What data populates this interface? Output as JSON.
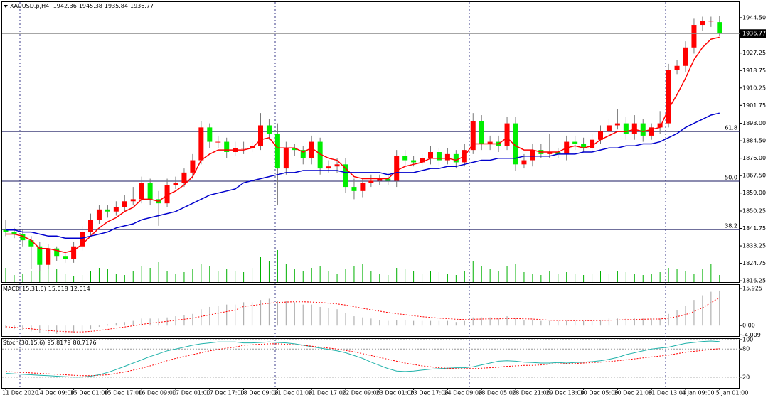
{
  "chart_data": [
    {
      "type": "candlestick",
      "title": "XAUUSD.p,H4",
      "categories": [
        "11 Dec 2020",
        null,
        null,
        null,
        "14 Dec 09:00",
        null,
        null,
        null,
        "15 Dec 01:00",
        null,
        null,
        null,
        "15 Dec 17:00",
        null,
        null,
        null,
        "16 Dec 09:00",
        null,
        null,
        null,
        "17 Dec 01:00",
        null,
        null,
        null,
        "17 Dec 17:00",
        null,
        null,
        null,
        "18 Dec 09:00",
        null,
        null,
        null,
        "21 Dec 01:00",
        null,
        null,
        null,
        "21 Dec 17:00",
        null,
        null,
        null,
        "22 Dec 09:00",
        null,
        null,
        null,
        "23 Dec 01:00",
        null,
        null,
        null,
        "23 Dec 17:00",
        null,
        null,
        null,
        "24 Dec 09:00",
        null,
        null,
        null,
        "28 Dec 05:00",
        null,
        null,
        null,
        "28 Dec 21:00",
        null,
        null,
        null,
        "29 Dec 13:00",
        null,
        null,
        null,
        "30 Dec 05:00",
        null,
        null,
        null,
        "30 Dec 21:00",
        null,
        null,
        null,
        "31 Dec 13:00",
        null,
        null,
        null,
        "4 Jan 09:00",
        null,
        null,
        null,
        "5 Jan 01:00"
      ],
      "open": [
        1841,
        1840,
        1839,
        1836,
        1833,
        1824,
        1832,
        1828,
        1827,
        1833,
        1840,
        1846,
        1851,
        1850,
        1852,
        1855,
        1856,
        1864,
        1856,
        1854,
        1863,
        1864,
        1869,
        1875,
        1891,
        1884,
        1884,
        1879,
        1881,
        1881,
        1882,
        1892,
        1888,
        1871,
        1881,
        1880,
        1876,
        1884,
        1871,
        1872,
        1873,
        1862,
        1860,
        1864,
        1865,
        1866,
        1865,
        1877,
        1875,
        1874,
        1876,
        1879,
        1875,
        1878,
        1874,
        1880,
        1894,
        1883,
        1884,
        1882,
        1893,
        1873,
        1875,
        1880,
        1878,
        1879,
        1878,
        1884,
        1883,
        1881,
        1885,
        1889,
        1892,
        1893,
        1888,
        1893,
        1887,
        1891,
        1893,
        1919,
        1921,
        1930,
        1941,
        1943,
        1942.36
      ],
      "high": [
        1846,
        1842,
        1841,
        1838,
        1835,
        1834,
        1833,
        1830,
        1835,
        1843,
        1849,
        1853,
        1853,
        1855,
        1858,
        1862,
        1867,
        1866,
        1860,
        1866,
        1867,
        1871,
        1878,
        1894,
        1893,
        1887,
        1886,
        1884,
        1884,
        1884,
        1898,
        1895,
        1893,
        1884,
        1883,
        1882,
        1887,
        1886,
        1875,
        1876,
        1876,
        1866,
        1866,
        1868,
        1868,
        1869,
        1880,
        1880,
        1877,
        1878,
        1882,
        1881,
        1881,
        1880,
        1883,
        1898,
        1897,
        1887,
        1887,
        1896,
        1896,
        1878,
        1883,
        1883,
        1888,
        1881,
        1887,
        1887,
        1886,
        1888,
        1892,
        1895,
        1900,
        1896,
        1897,
        1895,
        1893,
        1899,
        1922,
        1924,
        1933,
        1944,
        1945,
        1945,
        1945.38
      ],
      "low": [
        1838,
        1837,
        1833,
        1822,
        1821,
        1822,
        1826,
        1825,
        1825,
        1831,
        1838,
        1844,
        1847,
        1848,
        1850,
        1853,
        1854,
        1853,
        1843,
        1852,
        1861,
        1862,
        1866,
        1873,
        1881,
        1881,
        1876,
        1877,
        1878,
        1879,
        1880,
        1885,
        1853,
        1868,
        1877,
        1873,
        1873,
        1868,
        1869,
        1869,
        1859,
        1856,
        1857,
        1862,
        1863,
        1863,
        1862,
        1872,
        1872,
        1871,
        1873,
        1872,
        1873,
        1871,
        1872,
        1878,
        1880,
        1880,
        1879,
        1880,
        1870,
        1871,
        1872,
        1876,
        1876,
        1876,
        1875,
        1880,
        1879,
        1879,
        1883,
        1887,
        1890,
        1885,
        1885,
        1884,
        1885,
        1888,
        1891,
        1917,
        1918,
        1927,
        1938,
        1940,
        1935.84
      ],
      "close": [
        1840,
        1839,
        1836,
        1833,
        1824,
        1832,
        1828,
        1827,
        1833,
        1840,
        1846,
        1851,
        1850,
        1852,
        1855,
        1856,
        1864,
        1856,
        1854,
        1863,
        1864,
        1869,
        1875,
        1891,
        1884,
        1884,
        1879,
        1881,
        1881,
        1882,
        1892,
        1888,
        1871,
        1881,
        1880,
        1876,
        1884,
        1871,
        1872,
        1873,
        1862,
        1860,
        1864,
        1865,
        1866,
        1865,
        1877,
        1875,
        1874,
        1876,
        1879,
        1875,
        1878,
        1874,
        1880,
        1894,
        1883,
        1884,
        1882,
        1893,
        1873,
        1875,
        1880,
        1878,
        1879,
        1878,
        1884,
        1883,
        1881,
        1885,
        1889,
        1892,
        1893,
        1888,
        1893,
        1887,
        1891,
        1893,
        1919,
        1921,
        1930,
        1941,
        1943,
        1943,
        1936.77
      ],
      "up_color": "#ff0000",
      "down_color": "#00ee00",
      "overlays": [
        {
          "color": "#ff0000",
          "values": [
            1839,
            1839,
            1838,
            1836,
            1832,
            1832,
            1831,
            1830,
            1831,
            1834,
            1838,
            1842,
            1845,
            1847,
            1850,
            1852,
            1856,
            1856,
            1855,
            1858,
            1860,
            1863,
            1867,
            1875,
            1878,
            1880,
            1880,
            1880,
            1880,
            1881,
            1885,
            1886,
            1881,
            1881,
            1881,
            1879,
            1881,
            1878,
            1876,
            1875,
            1871,
            1867,
            1866,
            1866,
            1866,
            1866,
            1870,
            1872,
            1873,
            1874,
            1876,
            1876,
            1876,
            1875,
            1877,
            1883,
            1883,
            1883,
            1883,
            1886,
            1882,
            1880,
            1880,
            1879,
            1879,
            1879,
            1881,
            1882,
            1881,
            1882,
            1885,
            1887,
            1889,
            1889,
            1890,
            1889,
            1890,
            1891,
            1900,
            1907,
            1915,
            1924,
            1930,
            1934,
            1935
          ]
        },
        {
          "color": "#0000cc",
          "values": [
            1841,
            1841,
            1840,
            1840,
            1839,
            1838,
            1838,
            1837,
            1837,
            1837,
            1838,
            1839,
            1840,
            1842,
            1843,
            1844,
            1846,
            1847,
            1848,
            1849,
            1850,
            1852,
            1854,
            1856,
            1858,
            1859,
            1860,
            1861,
            1864,
            1865,
            1866,
            1867,
            1868,
            1869,
            1869,
            1870,
            1870,
            1870,
            1870,
            1870,
            1869,
            1869,
            1869,
            1869,
            1869,
            1868,
            1869,
            1869,
            1869,
            1870,
            1871,
            1871,
            1872,
            1872,
            1873,
            1874,
            1875,
            1875,
            1876,
            1876,
            1876,
            1877,
            1877,
            1877,
            1877,
            1878,
            1878,
            1878,
            1879,
            1879,
            1880,
            1881,
            1881,
            1882,
            1882,
            1883,
            1883,
            1884,
            1886,
            1888,
            1891,
            1893,
            1895,
            1897,
            1898
          ]
        }
      ],
      "volume": {
        "color": "#00b000",
        "values": [
          20,
          10,
          12,
          15,
          30,
          25,
          18,
          12,
          8,
          10,
          15,
          20,
          18,
          12,
          10,
          15,
          22,
          20,
          28,
          15,
          12,
          14,
          18,
          25,
          22,
          15,
          18,
          16,
          14,
          20,
          35,
          30,
          45,
          25,
          18,
          15,
          20,
          22,
          16,
          12,
          18,
          22,
          25,
          15,
          12,
          10,
          20,
          18,
          15,
          12,
          16,
          14,
          12,
          10,
          15,
          30,
          22,
          18,
          15,
          22,
          25,
          14,
          12,
          10,
          15,
          12,
          14,
          12,
          10,
          12,
          15,
          12,
          16,
          14,
          12,
          10,
          12,
          14,
          20,
          18,
          15,
          12,
          18,
          25,
          10
        ]
      },
      "levels": [
        {
          "label": "61.8",
          "price": 1889.0
        },
        {
          "label": "50.0",
          "price": 1864.8
        },
        {
          "label": "38.2",
          "price": 1841.2
        }
      ],
      "ylim": [
        1815.6,
        1952.1
      ],
      "yticks": [
        {
          "value": 1944.5,
          "label": "1944.50"
        },
        1927.25,
        1918.75,
        1910.25,
        1901.75,
        {
          "value": 1893,
          "label": "1893.00"
        },
        {
          "value": 1884.5,
          "label": "1884.50"
        },
        {
          "value": 1876,
          "label": "1876.00"
        },
        {
          "value": 1867.5,
          "label": "1867.50"
        },
        {
          "value": 1859,
          "label": "1859.00"
        },
        1850.25,
        1841.75,
        1833.25,
        1824.75,
        1816.25
      ],
      "grid": false
    },
    {
      "type": "macd",
      "title": "MACD(15,31,6)",
      "series": [
        {
          "color": "#b0b0b0",
          "style": "histogram",
          "values": [
            -1,
            -1.5,
            -2,
            -2.5,
            -3,
            -3.5,
            -3.5,
            -3.5,
            -3,
            -2.5,
            -1.5,
            -0.5,
            0.5,
            1,
            1.5,
            2,
            3,
            3,
            3,
            3.5,
            4,
            4.5,
            5,
            7,
            8,
            8.5,
            9,
            9,
            10,
            10,
            11,
            11.5,
            10.5,
            10.5,
            10,
            9,
            9,
            8,
            7.5,
            7,
            5.5,
            4,
            3.5,
            3,
            2.5,
            2,
            2.5,
            2.5,
            2,
            2,
            2,
            2,
            2,
            1.5,
            2,
            3.5,
            3.5,
            3.5,
            3,
            4,
            3,
            2.5,
            2.5,
            2,
            2,
            2,
            2,
            2,
            2,
            2,
            2.5,
            3,
            3,
            3,
            3,
            3,
            3,
            3,
            5,
            6.5,
            8.5,
            11,
            13,
            14.5,
            15.018
          ]
        },
        {
          "color": "#ff0000",
          "style": "dotted",
          "values": [
            -0.5,
            -0.8,
            -1.1,
            -1.4,
            -1.8,
            -2.1,
            -2.4,
            -2.6,
            -2.7,
            -2.7,
            -2.5,
            -2.1,
            -1.6,
            -1.1,
            -0.6,
            -0.1,
            0.5,
            1,
            1.4,
            1.8,
            2.3,
            2.7,
            3.2,
            3.9,
            4.6,
            5.3,
            6,
            6.6,
            8.2,
            8.6,
            9.1,
            9.6,
            9.9,
            10.1,
            10.2,
            10.2,
            10.1,
            9.9,
            9.6,
            9.3,
            8.8,
            8.1,
            7.4,
            6.8,
            6.2,
            5.6,
            5.1,
            4.7,
            4.2,
            3.8,
            3.5,
            3.2,
            3,
            2.7,
            2.6,
            2.7,
            2.8,
            2.9,
            2.9,
            3,
            3,
            2.9,
            2.8,
            2.6,
            2.3,
            2.2,
            2.2,
            2.1,
            2.1,
            2.1,
            2.2,
            2.3,
            2.4,
            2.5,
            2.6,
            2.7,
            2.8,
            2.8,
            3.2,
            3.8,
            4.7,
            6,
            7.6,
            9.8,
            12.014
          ]
        }
      ],
      "ylim": [
        -4.51,
        17.43
      ],
      "yticks": [
        15.925,
        {
          "value": 0,
          "label": "0.00"
        },
        -4.009
      ],
      "grid": false
    },
    {
      "type": "line",
      "title": "Stoch(30,15,6)",
      "series": [
        {
          "color": "#20b2aa",
          "style": "solid",
          "values": [
            28,
            27,
            26,
            25,
            24,
            23,
            22,
            21,
            20,
            20,
            22,
            25,
            30,
            36,
            43,
            50,
            57,
            64,
            70,
            76,
            80,
            84,
            88,
            91,
            93,
            95,
            95,
            95,
            93,
            93,
            94,
            95,
            94,
            93,
            91,
            88,
            85,
            82,
            79,
            76,
            72,
            66,
            60,
            52,
            45,
            38,
            33,
            32,
            33,
            35,
            37,
            38,
            39,
            40,
            40,
            42,
            46,
            50,
            54,
            55,
            54,
            52,
            51,
            50,
            50,
            51,
            50,
            51,
            52,
            53,
            55,
            58,
            62,
            68,
            72,
            76,
            80,
            82,
            84,
            88,
            92,
            94,
            96,
            97,
            95.8179
          ]
        },
        {
          "color": "#ff0000",
          "style": "dotted",
          "values": [
            32,
            31,
            30,
            29,
            28,
            27,
            26,
            25,
            24,
            23,
            23,
            24,
            25,
            28,
            31,
            35,
            39,
            44,
            49,
            55,
            60,
            64,
            68,
            72,
            76,
            79,
            82,
            84,
            88,
            89,
            90,
            91,
            91,
            90,
            89,
            88,
            86,
            84,
            82,
            80,
            77,
            74,
            70,
            66,
            62,
            58,
            54,
            50,
            47,
            44,
            42,
            40,
            39,
            38,
            38,
            38,
            39,
            40,
            41,
            43,
            44,
            45,
            45,
            46,
            48,
            48,
            49,
            49,
            50,
            51,
            52,
            53,
            55,
            57,
            59,
            61,
            63,
            65,
            67,
            70,
            73,
            75,
            77,
            79,
            80.7176
          ]
        }
      ],
      "ylim": [
        -3,
        101.5
      ],
      "yticks": [
        100,
        80,
        20
      ],
      "grid": true
    }
  ]
}
